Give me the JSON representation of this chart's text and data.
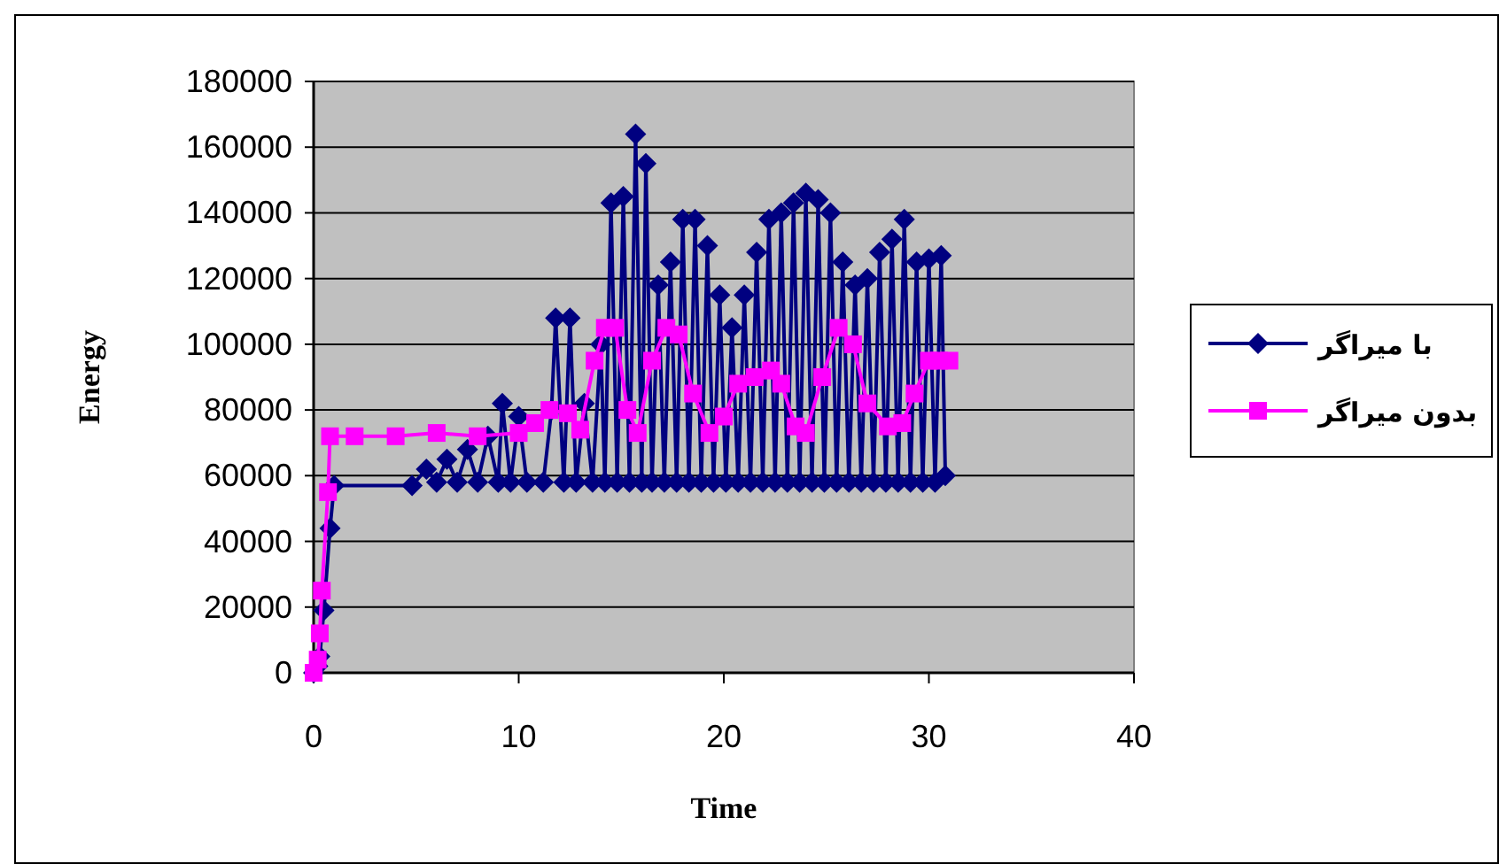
{
  "chart_data": {
    "type": "line",
    "xlabel": "Time",
    "ylabel": "Energy",
    "xlim": [
      0,
      40
    ],
    "xticks": [
      0,
      10,
      20,
      30,
      40
    ],
    "ylim": [
      0,
      180000
    ],
    "yticks": [
      0,
      20000,
      40000,
      60000,
      80000,
      100000,
      120000,
      140000,
      160000,
      180000
    ],
    "grid": "y",
    "legend": "right",
    "line_style": "solid",
    "series": [
      {
        "name": "با میراگر",
        "color": "#000080",
        "marker": "diamond",
        "x": [
          0,
          0.2,
          0.3,
          0.5,
          0.8,
          1,
          4.8,
          5.5,
          6,
          6.5,
          7,
          7.5,
          8,
          8.5,
          9,
          9.2,
          9.6,
          10,
          10.4,
          11.2,
          11.6,
          11.8,
          12.2,
          12.5,
          12.8,
          13.2,
          13.6,
          14,
          14.2,
          14.5,
          14.8,
          15.1,
          15.4,
          15.7,
          16,
          16.2,
          16.5,
          16.8,
          17.1,
          17.4,
          17.7,
          18,
          18.3,
          18.6,
          18.9,
          19.2,
          19.5,
          19.8,
          20.1,
          20.4,
          20.7,
          21,
          21.3,
          21.6,
          21.9,
          22.2,
          22.5,
          22.8,
          23.1,
          23.4,
          23.7,
          24,
          24.3,
          24.6,
          24.9,
          25.2,
          25.5,
          25.8,
          26.1,
          26.4,
          26.7,
          27,
          27.3,
          27.6,
          27.9,
          28.2,
          28.5,
          28.8,
          29.1,
          29.4,
          29.7,
          30,
          30.3,
          30.6,
          30.8
        ],
        "values": [
          0,
          2000,
          5000,
          19000,
          44000,
          57000,
          57000,
          62000,
          58000,
          65000,
          58000,
          68000,
          58000,
          72000,
          58000,
          82000,
          58000,
          78000,
          58000,
          58000,
          80000,
          108000,
          58000,
          108000,
          58000,
          82000,
          58000,
          100000,
          58000,
          143000,
          58000,
          145000,
          58000,
          164000,
          58000,
          155000,
          58000,
          118000,
          58000,
          125000,
          58000,
          138000,
          58000,
          138000,
          58000,
          130000,
          58000,
          115000,
          58000,
          105000,
          58000,
          115000,
          58000,
          128000,
          58000,
          138000,
          58000,
          140000,
          58000,
          143000,
          58000,
          146000,
          58000,
          144000,
          58000,
          140000,
          58000,
          125000,
          58000,
          118000,
          58000,
          120000,
          58000,
          128000,
          58000,
          132000,
          58000,
          138000,
          58000,
          125000,
          58000,
          126000,
          58000,
          127000,
          60000
        ]
      },
      {
        "name": "بدون میراگر",
        "color": "#ff00ff",
        "marker": "square",
        "x": [
          0,
          0.2,
          0.3,
          0.4,
          0.7,
          0.8,
          2,
          4,
          6,
          8,
          10,
          10.8,
          11.5,
          12.4,
          13,
          13.7,
          14.2,
          14.7,
          15.3,
          15.8,
          16.5,
          17.2,
          17.8,
          18.5,
          19.3,
          20,
          20.7,
          21.5,
          22.3,
          22.8,
          23.5,
          24,
          24.8,
          25.6,
          26.3,
          27,
          28,
          28.7,
          29.3,
          30,
          30.5,
          31
        ],
        "values": [
          0,
          4000,
          12000,
          25000,
          55000,
          72000,
          72000,
          72000,
          73000,
          72000,
          73000,
          76000,
          80000,
          79000,
          74000,
          95000,
          105000,
          105000,
          80000,
          73000,
          95000,
          105000,
          103000,
          85000,
          73000,
          78000,
          88000,
          90000,
          92000,
          88000,
          75000,
          73000,
          90000,
          105000,
          100000,
          82000,
          75000,
          76000,
          85000,
          95000,
          95000,
          95000
        ]
      }
    ]
  }
}
